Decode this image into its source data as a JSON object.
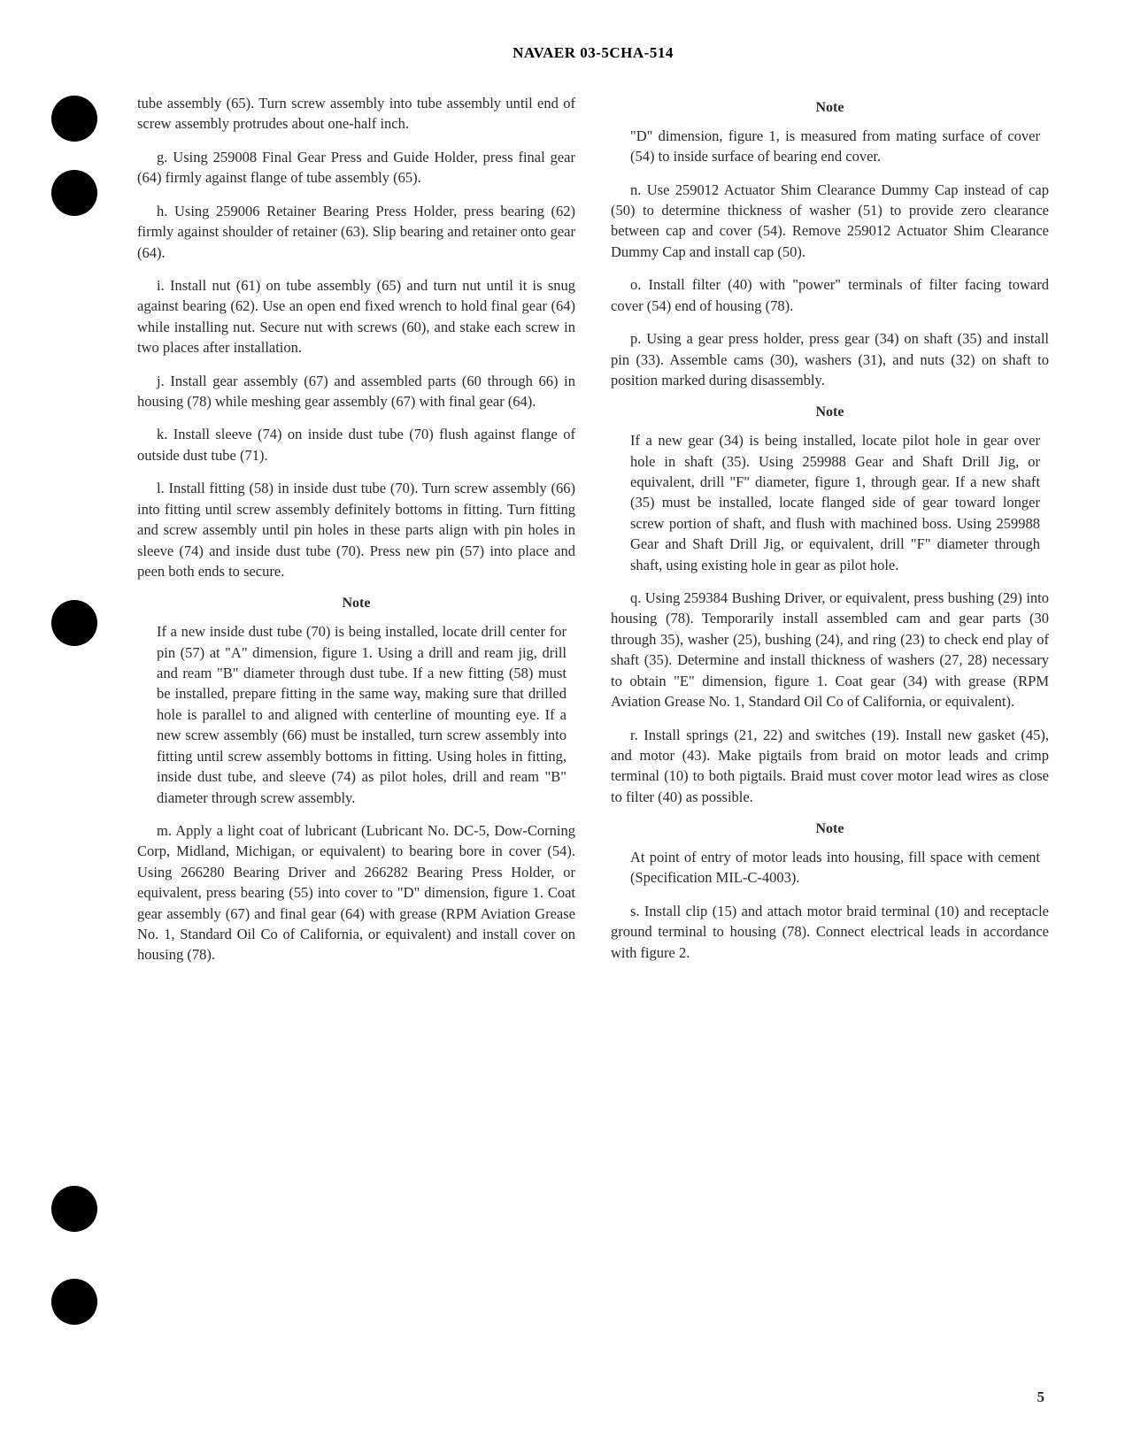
{
  "header": "NAVAER 03-5CHA-514",
  "page_number": "5",
  "left_column": {
    "para_f_cont": "tube assembly (65). Turn screw assembly into tube assembly until end of screw assembly protrudes about one-half inch.",
    "para_g": "g. Using 259008 Final Gear Press and Guide Holder, press final gear (64) firmly against flange of tube assembly (65).",
    "para_h": "h. Using 259006 Retainer Bearing Press Holder, press bearing (62) firmly against shoulder of retainer (63). Slip bearing and retainer onto gear (64).",
    "para_i": "i. Install nut (61) on tube assembly (65) and turn nut until it is snug against bearing (62). Use an open end fixed wrench to hold final gear (64) while installing nut. Secure nut with screws (60), and stake each screw in two places after installation.",
    "para_j": "j. Install gear assembly (67) and assembled parts (60 through 66) in housing (78) while meshing gear assembly (67) with final gear (64).",
    "para_k": "k. Install sleeve (74) on inside dust tube (70) flush against flange of outside dust tube (71).",
    "para_l": "l. Install fitting (58) in inside dust tube (70). Turn screw assembly (66) into fitting until screw assembly definitely bottoms in fitting. Turn fitting and screw assembly until pin holes in these parts align with pin holes in sleeve (74) and inside dust tube (70). Press new pin (57) into place and peen both ends to secure.",
    "note1_heading": "Note",
    "note1_body": "If a new inside dust tube (70) is being installed, locate drill center for pin (57) at \"A\" dimension, figure 1. Using a drill and ream jig, drill and ream \"B\" diameter through dust tube. If a new fitting (58) must be installed, prepare fitting in the same way, making sure that drilled hole is parallel to and aligned with centerline of mounting eye. If a new screw assembly (66) must be installed, turn screw assembly into fitting until screw assembly bottoms in fitting. Using holes in fitting, inside dust tube, and sleeve (74) as pilot holes, drill and ream \"B\" diameter through screw assembly.",
    "para_m": "m. Apply a light coat of lubricant (Lubricant No. DC-5, Dow-Corning Corp, Midland, Michigan, or equivalent) to bearing bore in cover (54). Using 266280 Bearing Driver and 266282 Bearing Press Holder, or equivalent, press bearing (55) into cover to \"D\" dimension, figure 1. Coat gear assembly (67) and final gear (64) with grease (RPM Aviation Grease No. 1, Standard Oil Co of California, or equivalent) and install cover on housing (78)."
  },
  "right_column": {
    "note2_heading": "Note",
    "note2_body": "\"D\" dimension, figure 1, is measured from mating surface of cover (54) to inside surface of bearing end cover.",
    "para_n": "n. Use 259012 Actuator Shim Clearance Dummy Cap instead of cap (50) to determine thickness of washer (51) to provide zero clearance between cap and cover (54). Remove 259012 Actuator Shim Clearance Dummy Cap and install cap (50).",
    "para_o": "o. Install filter (40) with \"power\" terminals of filter facing toward cover (54) end of housing (78).",
    "para_p": "p. Using a gear press holder, press gear (34) on shaft (35) and install pin (33). Assemble cams (30), washers (31), and nuts (32) on shaft to position marked during disassembly.",
    "note3_heading": "Note",
    "note3_body": "If a new gear (34) is being installed, locate pilot hole in gear over hole in shaft (35). Using 259988 Gear and Shaft Drill Jig, or equivalent, drill \"F\" diameter, figure 1, through gear. If a new shaft (35) must be installed, locate flanged side of gear toward longer screw portion of shaft, and flush with machined boss. Using 259988 Gear and Shaft Drill Jig, or equivalent, drill \"F\" diameter through shaft, using existing hole in gear as pilot hole.",
    "para_q": "q. Using 259384 Bushing Driver, or equivalent, press bushing (29) into housing (78). Temporarily install assembled cam and gear parts (30 through 35), washer (25), bushing (24), and ring (23) to check end play of shaft (35). Determine and install thickness of washers (27, 28) necessary to obtain \"E\" dimension, figure 1. Coat gear (34) with grease (RPM Aviation Grease No. 1, Standard Oil Co of California, or equivalent).",
    "para_r": "r. Install springs (21, 22) and switches (19). Install new gasket (45), and motor (43). Make pigtails from braid on motor leads and crimp terminal (10) to both pigtails. Braid must cover motor lead wires as close to filter (40) as possible.",
    "note4_heading": "Note",
    "note4_body": "At point of entry of motor leads into housing, fill space with cement (Specification MIL-C-4003).",
    "para_s": "s. Install clip (15) and attach motor braid terminal (10) and receptacle ground terminal to housing (78). Connect electrical leads in accordance with figure 2."
  }
}
